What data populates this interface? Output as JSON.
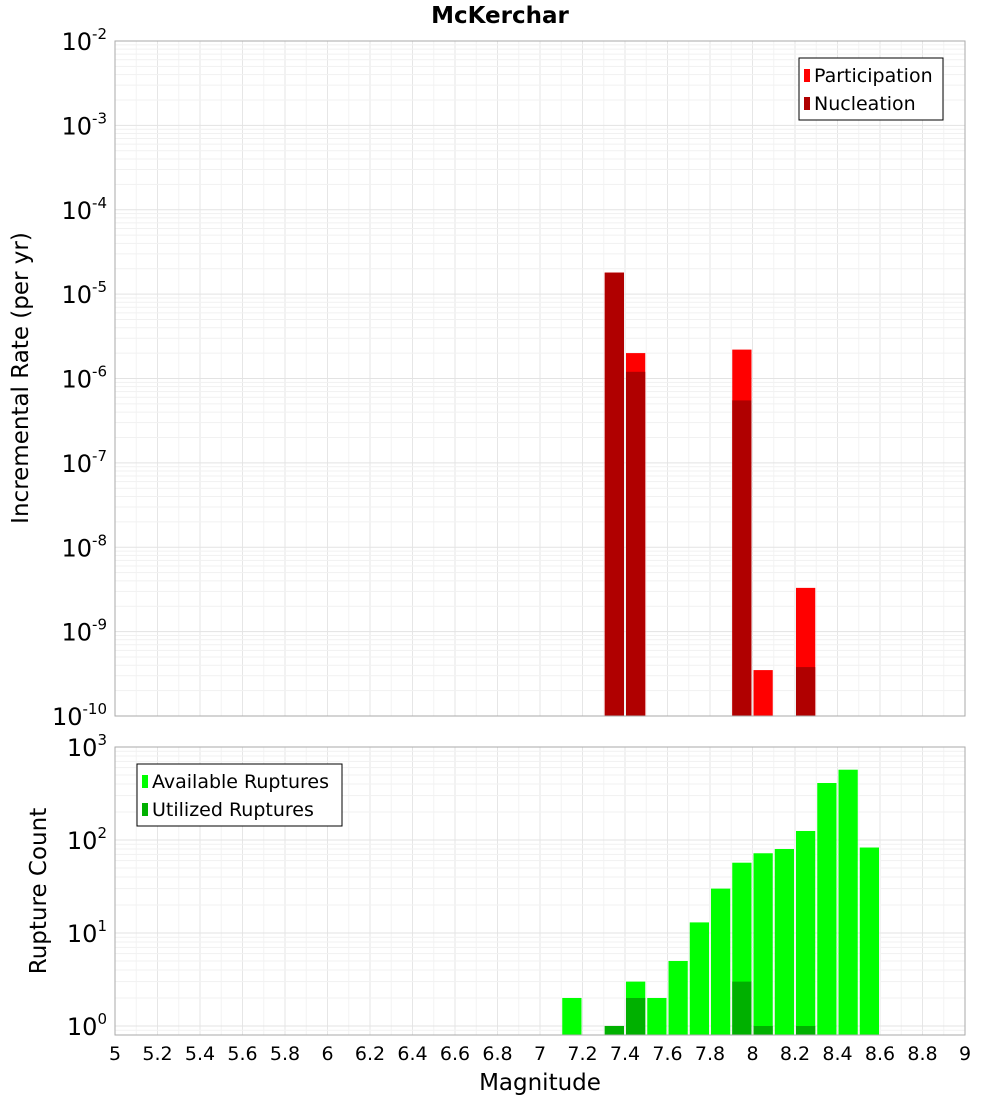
{
  "chart_data": [
    {
      "type": "bar",
      "title": "McKerchar",
      "xlabel": "",
      "ylabel": "Incremental Rate (per yr)",
      "yscale": "log",
      "xlim": [
        5,
        9
      ],
      "ylim": [
        1e-10,
        0.01
      ],
      "legend_position": "top-right",
      "series": [
        {
          "name": "Participation",
          "color": "#ff0000",
          "x": [
            7.35,
            7.45,
            7.95,
            8.05,
            8.25
          ],
          "values": [
            1.8e-05,
            2e-06,
            2.2e-06,
            3.5e-10,
            3.3e-09
          ]
        },
        {
          "name": "Nucleation",
          "color": "#b00000",
          "x": [
            7.35,
            7.45,
            7.95,
            8.25
          ],
          "values": [
            1.8e-05,
            1.2e-06,
            5.5e-07,
            3.8e-10
          ]
        }
      ]
    },
    {
      "type": "bar",
      "title": "",
      "xlabel": "Magnitude",
      "ylabel": "Rupture Count",
      "yscale": "log",
      "xlim": [
        5,
        9
      ],
      "ylim": [
        0.8,
        1000
      ],
      "legend_position": "top-left",
      "series": [
        {
          "name": "Available Ruptures",
          "color": "#00ff00",
          "x": [
            7.15,
            7.35,
            7.45,
            7.55,
            7.65,
            7.75,
            7.85,
            7.95,
            8.05,
            8.15,
            8.25,
            8.35,
            8.45,
            8.55
          ],
          "values": [
            2,
            1,
            3,
            2,
            5,
            13,
            30,
            57,
            72,
            80,
            125,
            410,
            570,
            83
          ]
        },
        {
          "name": "Utilized Ruptures",
          "color": "#00b000",
          "x": [
            7.35,
            7.45,
            7.95,
            8.05,
            8.25
          ],
          "values": [
            1,
            2,
            3,
            1,
            1
          ]
        }
      ]
    }
  ]
}
